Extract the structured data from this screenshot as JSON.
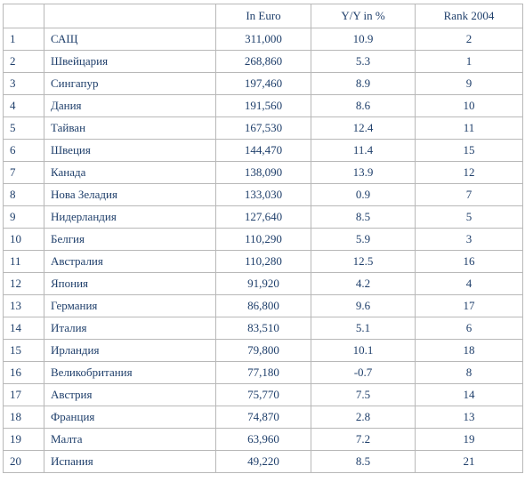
{
  "table": {
    "headers": [
      "",
      "",
      "In Euro",
      "Y/Y in %",
      "Rank 2004"
    ],
    "rows": [
      {
        "n": "1",
        "country": "САЩ",
        "euro": "311,000",
        "yy": "10.9",
        "rank": "2"
      },
      {
        "n": "2",
        "country": "Швейцария",
        "euro": "268,860",
        "yy": "5.3",
        "rank": "1"
      },
      {
        "n": "3",
        "country": "Сингапур",
        "euro": "197,460",
        "yy": "8.9",
        "rank": "9"
      },
      {
        "n": "4",
        "country": "Дания",
        "euro": "191,560",
        "yy": "8.6",
        "rank": "10"
      },
      {
        "n": "5",
        "country": "Тайван",
        "euro": "167,530",
        "yy": "12.4",
        "rank": "11"
      },
      {
        "n": "6",
        "country": "Швеция",
        "euro": "144,470",
        "yy": "11.4",
        "rank": "15"
      },
      {
        "n": "7",
        "country": "Канада",
        "euro": "138,090",
        "yy": "13.9",
        "rank": "12"
      },
      {
        "n": "8",
        "country": "Нова Зеладия",
        "euro": "133,030",
        "yy": "0.9",
        "rank": "7"
      },
      {
        "n": "9",
        "country": "Нидерландия",
        "euro": "127,640",
        "yy": "8.5",
        "rank": "5"
      },
      {
        "n": "10",
        "country": "Белгия",
        "euro": "110,290",
        "yy": "5.9",
        "rank": "3"
      },
      {
        "n": "11",
        "country": "Австралия",
        "euro": "110,280",
        "yy": "12.5",
        "rank": "16"
      },
      {
        "n": "12",
        "country": "Япония",
        "euro": "91,920",
        "yy": "4.2",
        "rank": "4"
      },
      {
        "n": "13",
        "country": "Германия",
        "euro": "86,800",
        "yy": "9.6",
        "rank": "17"
      },
      {
        "n": "14",
        "country": "Италия",
        "euro": "83,510",
        "yy": "5.1",
        "rank": "6"
      },
      {
        "n": "15",
        "country": "Ирландия",
        "euro": "79,800",
        "yy": "10.1",
        "rank": "18"
      },
      {
        "n": "16",
        "country": "Великобритания",
        "euro": "77,180",
        "yy": "-0.7",
        "rank": "8"
      },
      {
        "n": "17",
        "country": "Австрия",
        "euro": "75,770",
        "yy": "7.5",
        "rank": "14"
      },
      {
        "n": "18",
        "country": "Франция",
        "euro": "74,870",
        "yy": "2.8",
        "rank": "13"
      },
      {
        "n": "19",
        "country": "Малта",
        "euro": "63,960",
        "yy": "7.2",
        "rank": "19"
      },
      {
        "n": "20",
        "country": "Испания",
        "euro": "49,220",
        "yy": "8.5",
        "rank": "21"
      }
    ]
  }
}
